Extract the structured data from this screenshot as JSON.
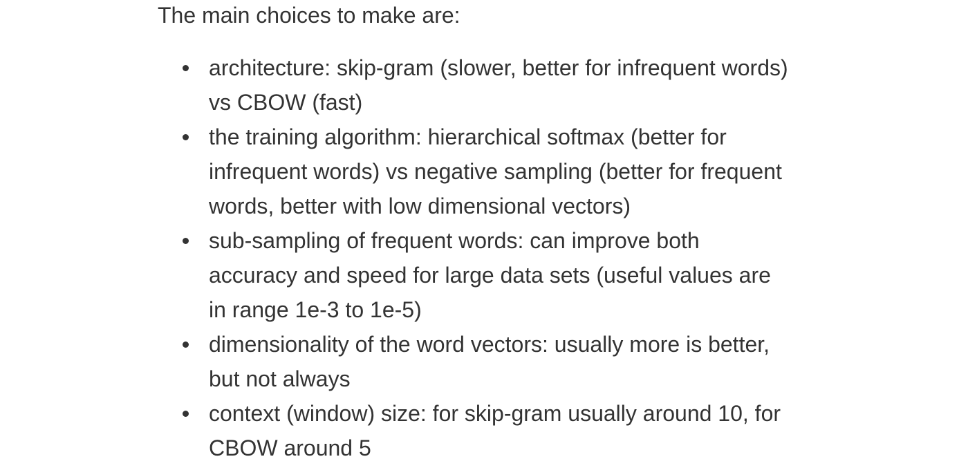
{
  "intro": "The main choices to make are:",
  "choices": [
    {
      "lines": [
        "architecture: skip-gram (slower, better for infrequent words)",
        "vs CBOW (fast)"
      ]
    },
    {
      "lines": [
        "the training algorithm: hierarchical softmax (better for",
        "infrequent words) vs negative sampling (better for frequent",
        "words, better with low dimensional vectors)"
      ]
    },
    {
      "lines": [
        "sub-sampling of frequent words: can improve both",
        "accuracy and speed for large data sets (useful values are",
        "in range 1e-3 to 1e-5)"
      ]
    },
    {
      "lines": [
        "dimensionality of the word vectors: usually more is better,",
        "but not always"
      ]
    },
    {
      "lines": [
        "context (window) size: for skip-gram usually around 10, for",
        "CBOW around 5"
      ]
    }
  ]
}
